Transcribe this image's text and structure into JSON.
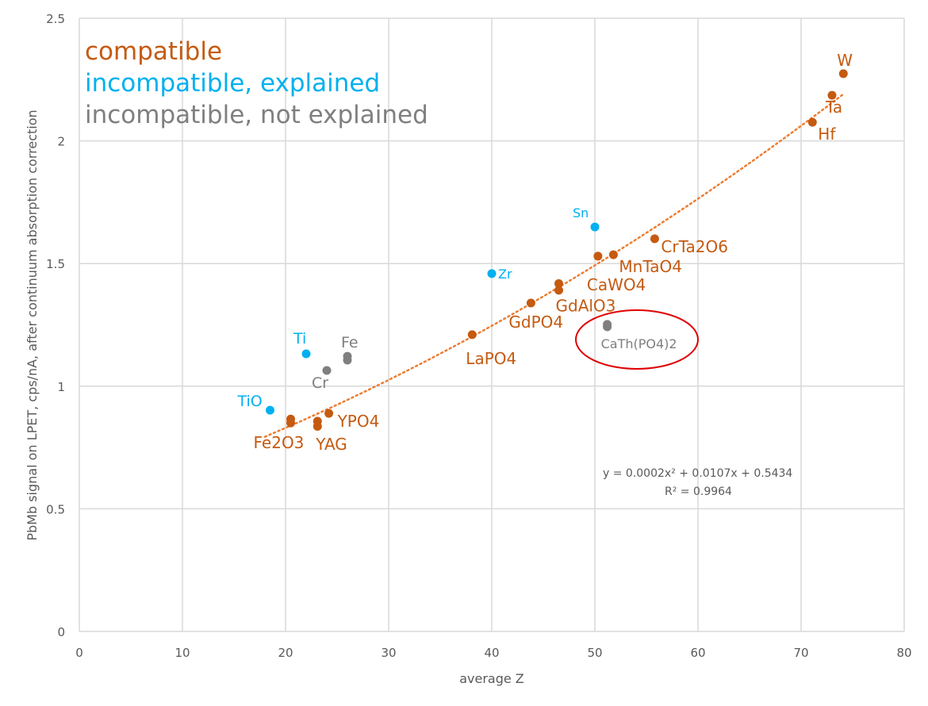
{
  "chart_data": {
    "type": "scatter",
    "title": "",
    "xlabel": "average Z",
    "ylabel": "PbMb signal on LPET, cps/nA, after continuum absorption correction",
    "xlim": [
      0,
      80
    ],
    "ylim": [
      0,
      2.5
    ],
    "xticks": [
      "0",
      "10",
      "20",
      "30",
      "40",
      "50",
      "60",
      "70",
      "80"
    ],
    "yticks": [
      "0",
      "0.5",
      "1",
      "1.5",
      "2",
      "2.5"
    ],
    "grid": true,
    "legend": [
      {
        "name": "compatible",
        "color": "#c55a11"
      },
      {
        "name": "incompatible, explained",
        "color": "#00b0f0"
      },
      {
        "name": "incompatible, not explained",
        "color": "#7f7f7f"
      }
    ],
    "legend_placement": "top-left",
    "series": [
      {
        "name": "compatible",
        "color": "#c55a11",
        "points": [
          {
            "x": 74.1,
            "y": 2.274,
            "label": "W"
          },
          {
            "x": 73.0,
            "y": 2.186,
            "label": "Ta"
          },
          {
            "x": 71.1,
            "y": 2.076,
            "label": "Hf"
          },
          {
            "x": 55.8,
            "y": 1.601,
            "label": "CrTa2O6"
          },
          {
            "x": 51.8,
            "y": 1.536,
            "label": "MnTaO4"
          },
          {
            "x": 50.3,
            "y": 1.53,
            "label": "CaWO4"
          },
          {
            "x": 46.5,
            "y": 1.418,
            "label": "GdAlO3"
          },
          {
            "x": 46.5,
            "y": 1.391,
            "label": null
          },
          {
            "x": 43.8,
            "y": 1.339,
            "label": "GdPO4"
          },
          {
            "x": 38.1,
            "y": 1.21,
            "label": "LaPO4"
          },
          {
            "x": 24.2,
            "y": 0.889,
            "label": "YPO4"
          },
          {
            "x": 23.1,
            "y": 0.857,
            "label": "YAG"
          },
          {
            "x": 23.1,
            "y": 0.836,
            "label": null
          },
          {
            "x": 20.5,
            "y": 0.866,
            "label": "Fe2O3"
          },
          {
            "x": 20.5,
            "y": 0.85,
            "label": null
          }
        ]
      },
      {
        "name": "incompatible, explained",
        "color": "#00b0f0",
        "points": [
          {
            "x": 50.0,
            "y": 1.649,
            "label": "Sn"
          },
          {
            "x": 40.0,
            "y": 1.459,
            "label": "Zr"
          },
          {
            "x": 22.0,
            "y": 1.132,
            "label": "Ti"
          },
          {
            "x": 18.5,
            "y": 0.902,
            "label": "TiO"
          }
        ]
      },
      {
        "name": "incompatible, not explained",
        "color": "#7f7f7f",
        "points": [
          {
            "x": 26.0,
            "y": 1.122,
            "label": "Fe"
          },
          {
            "x": 26.0,
            "y": 1.106,
            "label": null
          },
          {
            "x": 24.0,
            "y": 1.064,
            "label": "Cr"
          },
          {
            "x": 51.2,
            "y": 1.252,
            "label": "CaTh(PO4)2"
          },
          {
            "x": 51.2,
            "y": 1.242,
            "label": null
          }
        ]
      }
    ],
    "trendline": {
      "type": "polynomial-2",
      "color": "#ed7d31",
      "x_range": [
        18,
        74
      ],
      "equation": "y = 0.0002x² + 0.0107x + 0.5434",
      "r_squared": "R² = 0.9964"
    },
    "annotation": {
      "type": "ellipse",
      "color": "#e00000",
      "around": "CaTh(PO4)2"
    }
  }
}
